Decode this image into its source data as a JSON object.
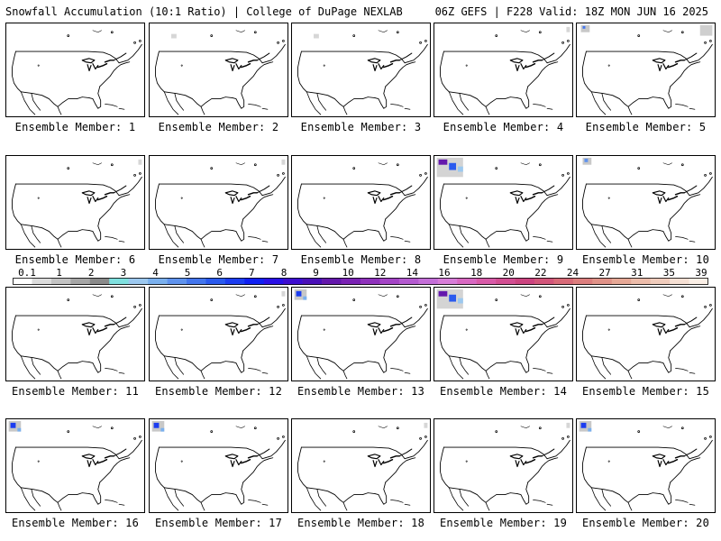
{
  "header": {
    "title_left": "Snowfall Accumulation (10:1 Ratio) | College of DuPage NEXLAB",
    "title_right": "06Z GEFS | F228 Valid: 18Z MON JUN 16 2025"
  },
  "panels": [
    {
      "label": "Ensemble Member: 1",
      "snow": "none"
    },
    {
      "label": "Ensemble Member: 2",
      "snow": "trace-northwest"
    },
    {
      "label": "Ensemble Member: 3",
      "snow": "trace-northwest"
    },
    {
      "label": "Ensemble Member: 4",
      "snow": "trace-north"
    },
    {
      "label": "Ensemble Member: 5",
      "snow": "light-northwest-and-northeast"
    },
    {
      "label": "Ensemble Member: 6",
      "snow": "trace-north"
    },
    {
      "label": "Ensemble Member: 7",
      "snow": "trace-north"
    },
    {
      "label": "Ensemble Member: 8",
      "snow": "none"
    },
    {
      "label": "Ensemble Member: 9",
      "snow": "heavy-northwest"
    },
    {
      "label": "Ensemble Member: 10",
      "snow": "light-northwest"
    },
    {
      "label": "Ensemble Member: 11",
      "snow": "none"
    },
    {
      "label": "Ensemble Member: 12",
      "snow": "trace-north"
    },
    {
      "label": "Ensemble Member: 13",
      "snow": "moderate-northwest"
    },
    {
      "label": "Ensemble Member: 14",
      "snow": "heavy-northwest"
    },
    {
      "label": "Ensemble Member: 15",
      "snow": "none"
    },
    {
      "label": "Ensemble Member: 16",
      "snow": "moderate-northwest"
    },
    {
      "label": "Ensemble Member: 17",
      "snow": "moderate-northwest"
    },
    {
      "label": "Ensemble Member: 18",
      "snow": "trace-north"
    },
    {
      "label": "Ensemble Member: 19",
      "snow": "trace-north"
    },
    {
      "label": "Ensemble Member: 20",
      "snow": "moderate-northwest"
    }
  ],
  "colorbar": {
    "labels": [
      "0.1",
      "1",
      "2",
      "3",
      "4",
      "5",
      "6",
      "7",
      "8",
      "9",
      "10",
      "12",
      "14",
      "16",
      "18",
      "20",
      "22",
      "24",
      "27",
      "31",
      "35",
      "39"
    ],
    "colors": [
      "#ffffff",
      "#dcdcdc",
      "#c3c3c3",
      "#a6a6a6",
      "#8a8a8a",
      "#7fe0df",
      "#9cc8ef",
      "#7ab0ee",
      "#5f93ee",
      "#4376ee",
      "#2a5aee",
      "#1c3df0",
      "#1020f2",
      "#2a10e6",
      "#3e0ed0",
      "#4a10b8",
      "#6418ac",
      "#7a22b4",
      "#8f32bc",
      "#a444c6",
      "#b45ad0",
      "#c46ed8",
      "#d77cd8",
      "#d868c2",
      "#d85aa8",
      "#d24e92",
      "#cc4480",
      "#d2557a",
      "#d86a78",
      "#dc7e7e",
      "#e09288",
      "#e6a896",
      "#ecbcaa",
      "#f0ccbc",
      "#f6e0d4",
      "#fbefe6"
    ]
  }
}
